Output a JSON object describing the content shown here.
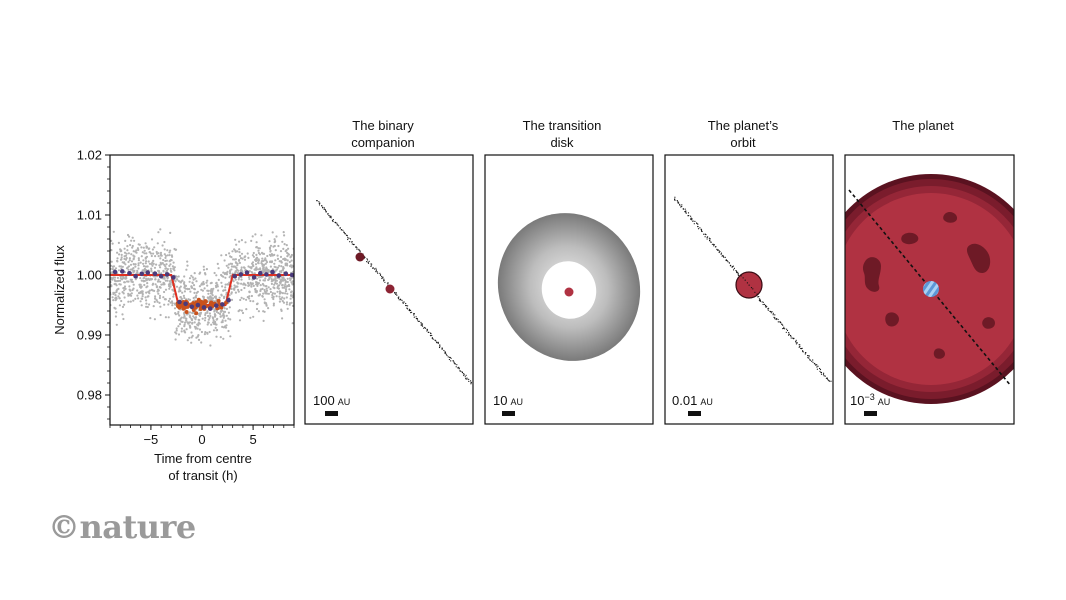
{
  "watermark": "©nature",
  "colors": {
    "scatter": "#b3b3b3",
    "binned": "#4b3a7a",
    "model": "#e03020",
    "in_transit": "#c9521c",
    "planet": "#b03242",
    "planet_dark": "#6e1a26",
    "disk": "#8c8c8c"
  },
  "chart_data": [
    {
      "type": "scatter",
      "xlabel": "Time from centre of transit (h)",
      "xlabel_lines": [
        "Time from centre",
        "of transit (h)"
      ],
      "ylabel": "Normalized flux",
      "xlim": [
        -9,
        9
      ],
      "ylim": [
        0.975,
        1.02
      ],
      "xticks": [
        {
          "value": -5,
          "label": "−5"
        },
        {
          "value": 0,
          "label": "0"
        },
        {
          "value": 5,
          "label": "5"
        }
      ],
      "yticks": [
        {
          "value": 0.98,
          "label": "0.98"
        },
        {
          "value": 0.99,
          "label": "0.99"
        },
        {
          "value": 1.0,
          "label": "1.00"
        },
        {
          "value": 1.01,
          "label": "1.01"
        },
        {
          "value": 1.02,
          "label": "1.02"
        }
      ],
      "grid": false,
      "series": [
        {
          "kind": "binned",
          "x": [
            -8.5,
            -7.8,
            -7.1,
            -6.5,
            -5.9,
            -5.3,
            -4.6,
            -4.0,
            -3.4,
            -2.8,
            -2.2,
            -1.6,
            -1.0,
            -0.4,
            0.2,
            0.8,
            1.4,
            2.0,
            2.6,
            3.2,
            3.8,
            4.4,
            5.1,
            5.7,
            6.3,
            6.9,
            7.5,
            8.2,
            8.8
          ],
          "values": [
            1.0005,
            1.0006,
            1.0003,
            0.9998,
            1.0002,
            1.0004,
            1.0002,
            0.9998,
            1.0001,
            0.9996,
            0.9955,
            0.9952,
            0.9947,
            0.995,
            0.9946,
            0.9944,
            0.9949,
            0.9951,
            0.9958,
            0.9998,
            1.0001,
            1.0004,
            0.9996,
            1.0003,
            1.0001,
            1.0005,
            0.9999,
            1.0002,
            1.0
          ]
        },
        {
          "kind": "model",
          "x": [
            -9,
            -3.0,
            -2.3,
            2.3,
            3.0,
            9
          ],
          "values": [
            1.0,
            1.0,
            0.995,
            0.995,
            1.0,
            1.0
          ]
        }
      ]
    },
    {
      "type": "diagram",
      "title": "The binary companion",
      "title_lines": [
        "The binary",
        "companion"
      ],
      "scale_label": "100",
      "scale_unit": "AU",
      "scale_sup": ""
    },
    {
      "type": "diagram",
      "title": "The transition disk",
      "title_lines": [
        "The transition",
        "disk"
      ],
      "scale_label": "10",
      "scale_unit": "AU",
      "scale_sup": ""
    },
    {
      "type": "diagram",
      "title": "The planet’s orbit",
      "title_lines": [
        "The planet’s",
        "orbit"
      ],
      "scale_label": "0.01",
      "scale_unit": "AU",
      "scale_sup": ""
    },
    {
      "type": "diagram",
      "title": "The planet",
      "title_lines": [
        "The planet"
      ],
      "scale_label": "10",
      "scale_unit": "AU",
      "scale_sup": "−3"
    }
  ]
}
